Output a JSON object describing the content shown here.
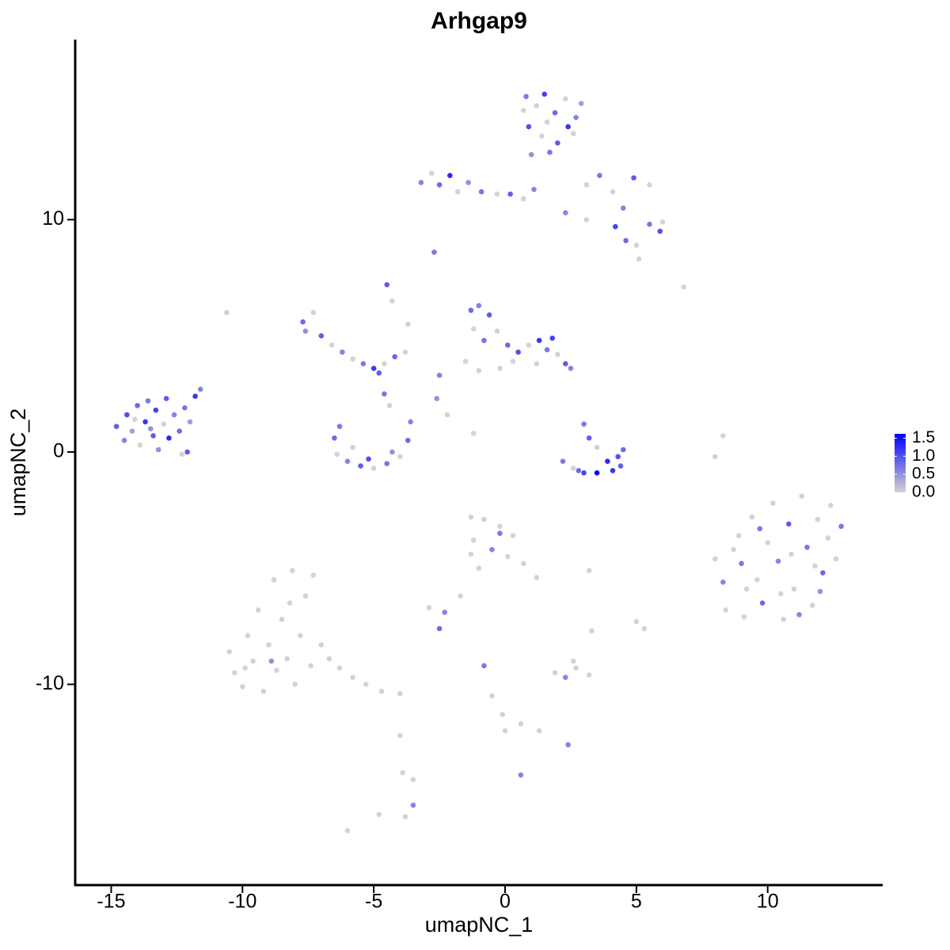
{
  "chart_data": {
    "type": "scatter",
    "title": "Arhgap9",
    "x_label": "umapNC_1",
    "y_label": "umapNC_2",
    "x": [
      -14.8,
      -14.5,
      -14.4,
      -14.2,
      -14.0,
      -13.9,
      -13.7,
      -13.6,
      -13.4,
      -13.3,
      -13.2,
      -13.0,
      -12.9,
      -12.8,
      -12.6,
      -12.4,
      -12.3,
      -12.2,
      -12.0,
      -12.1,
      -11.8,
      -11.6,
      -14.1,
      -13.5,
      0.8,
      1.2,
      1.5,
      1.9,
      2.3,
      2.7,
      0.9,
      1.4,
      2.0,
      2.6,
      1.0,
      1.7,
      0.7,
      2.9,
      2.4,
      1.6,
      -3.2,
      -2.8,
      -2.5,
      -2.1,
      -1.8,
      -1.4,
      -0.9,
      -0.3,
      0.2,
      0.7,
      1.1,
      3.1,
      3.6,
      4.1,
      4.5,
      4.9,
      5.5,
      4.2,
      4.6,
      5.0,
      5.5,
      5.9,
      6.0,
      2.3,
      3.1,
      -2.7,
      -7.7,
      -7.3,
      -7.0,
      -6.6,
      -6.2,
      -5.8,
      -5.4,
      -5.0,
      -4.6,
      -4.2,
      -3.8,
      -4.3,
      -4.5,
      -3.7,
      -7.6,
      -4.8,
      -4.6,
      -4.4,
      -6.5,
      -6.4,
      -6.0,
      -5.5,
      -5.0,
      -4.5,
      -4.0,
      -3.7,
      -3.6,
      -6.3,
      -5.8,
      -4.3,
      -5.2,
      -1.3,
      -1.0,
      -0.6,
      -1.2,
      -0.8,
      -0.3,
      0.1,
      0.5,
      0.9,
      1.3,
      1.6,
      2.0,
      2.3,
      2.5,
      1.8,
      0.3,
      -0.2,
      -1.5,
      -2.5,
      -2.6,
      -1.0,
      1.2,
      -2.2,
      -1.2,
      3.0,
      3.2,
      3.5,
      3.9,
      4.3,
      4.5,
      3.5,
      3.0,
      2.6,
      2.2,
      4.1,
      2.8,
      4.4,
      8.3,
      8.0,
      -10.6,
      8.0,
      8.3,
      8.4,
      8.9,
      9.0,
      9.1,
      9.4,
      9.6,
      9.8,
      10.0,
      10.2,
      10.4,
      10.6,
      10.8,
      11.0,
      11.3,
      11.5,
      11.7,
      11.9,
      12.1,
      12.3,
      12.6,
      12.8,
      12.4,
      11.2,
      9.2,
      10.5,
      11.8,
      9.7,
      10.9,
      12.0,
      8.7,
      -10.5,
      -10.3,
      -10.0,
      -9.8,
      -9.6,
      -9.4,
      -9.2,
      -9.0,
      -8.8,
      -8.7,
      -8.5,
      -8.3,
      -8.1,
      -8.0,
      -7.8,
      -7.6,
      -7.4,
      -7.3,
      -7.0,
      -6.7,
      -6.3,
      -5.8,
      -5.3,
      -4.7,
      -4.0,
      -8.9,
      -9.9,
      -8.2,
      -1.3,
      -0.8,
      -0.2,
      0.3,
      -1.2,
      -0.5,
      0.1,
      0.7,
      1.2,
      -0.2,
      -1.3,
      -2.9,
      -2.3,
      -2.5,
      -1.7,
      -1.0,
      -0.8,
      -0.5,
      -0.1,
      0.0,
      0.6,
      1.3,
      2.4,
      0.6,
      1.9,
      2.3,
      2.7,
      3.2,
      2.6,
      3.2,
      5.0,
      5.3,
      3.3,
      -3.5,
      -3.5,
      -3.8,
      -4.0,
      -4.8,
      -6.0,
      -3.9,
      5.1,
      6.8
    ],
    "values": [
      1.1,
      0.5,
      1.6,
      0.9,
      2.0,
      0.3,
      1.3,
      2.2,
      0.7,
      1.8,
      0.1,
      1.2,
      2.3,
      0.6,
      1.6,
      0.9,
      -0.1,
      1.9,
      1.3,
      0.0,
      2.4,
      2.7,
      1.4,
      1.0,
      15.3,
      14.9,
      15.4,
      14.6,
      15.2,
      14.4,
      14.0,
      13.6,
      13.3,
      13.7,
      12.8,
      12.9,
      14.7,
      15.0,
      14.0,
      14.2,
      11.6,
      12.0,
      11.5,
      11.9,
      11.2,
      11.6,
      11.2,
      11.1,
      11.1,
      10.9,
      11.3,
      11.5,
      11.9,
      11.2,
      10.5,
      11.8,
      11.5,
      9.7,
      9.1,
      8.9,
      9.8,
      9.5,
      9.9,
      10.3,
      10.0,
      8.6,
      5.6,
      6.0,
      5.0,
      4.6,
      4.3,
      4.0,
      3.8,
      3.6,
      3.8,
      4.1,
      4.3,
      6.5,
      7.2,
      5.5,
      5.2,
      3.4,
      2.5,
      2.0,
      0.6,
      -0.1,
      -0.4,
      -0.6,
      -0.7,
      -0.5,
      -0.2,
      0.5,
      1.3,
      1.1,
      0.2,
      0.0,
      -0.3,
      6.1,
      6.3,
      5.9,
      5.3,
      4.8,
      5.2,
      4.6,
      4.3,
      4.6,
      4.8,
      4.4,
      4.2,
      3.8,
      3.6,
      4.9,
      3.9,
      3.6,
      3.9,
      3.3,
      2.3,
      3.5,
      3.8,
      1.6,
      0.8,
      1.2,
      0.6,
      0.2,
      -0.4,
      -0.2,
      0.1,
      -0.9,
      -0.9,
      -0.7,
      -0.4,
      -0.8,
      -0.8,
      -0.6,
      0.7,
      -0.2,
      6.0,
      -4.6,
      -5.6,
      -6.8,
      -3.6,
      -4.8,
      -7.1,
      -2.8,
      -5.5,
      -6.5,
      -3.9,
      -2.2,
      -4.7,
      -7.2,
      -3.1,
      -5.9,
      -1.9,
      -4.1,
      -6.6,
      -2.9,
      -5.2,
      -3.7,
      -4.6,
      -3.2,
      -2.3,
      -7.0,
      -5.9,
      -6.1,
      -4.9,
      -3.3,
      -4.4,
      -6.0,
      -4.2,
      -8.6,
      -9.5,
      -10.1,
      -7.9,
      -9.0,
      -6.8,
      -10.3,
      -8.3,
      -5.5,
      -9.4,
      -7.2,
      -8.9,
      -5.1,
      -10.0,
      -7.9,
      -6.2,
      -9.2,
      -5.3,
      -8.3,
      -8.9,
      -9.3,
      -9.7,
      -10.0,
      -10.3,
      -10.4,
      -9.0,
      -9.3,
      -6.5,
      -2.8,
      -2.9,
      -3.2,
      -3.6,
      -3.8,
      -4.2,
      -4.5,
      -4.8,
      -5.4,
      -3.5,
      -4.4,
      -6.7,
      -6.9,
      -7.6,
      -6.2,
      -5.0,
      -9.2,
      -10.5,
      -11.3,
      -12.0,
      -11.7,
      -12.0,
      -12.6,
      -13.9,
      -9.5,
      -9.7,
      -9.3,
      -9.6,
      -9.0,
      -5.1,
      -7.3,
      -7.6,
      -7.7,
      -14.1,
      -15.2,
      -15.7,
      -12.2,
      -15.6,
      -16.3,
      -13.8,
      8.3,
      7.1
    ],
    "expression": [
      0.9,
      0.6,
      1.0,
      0.4,
      0.8,
      0,
      1.2,
      0.7,
      0.9,
      1.1,
      0.5,
      0,
      0.9,
      1.3,
      0.6,
      0.8,
      0,
      0.7,
      0.4,
      0.9,
      1.2,
      0.6,
      0,
      0.5,
      0.7,
      0,
      1.1,
      0.8,
      0,
      0.6,
      1.0,
      0,
      0.9,
      0,
      0.5,
      0.7,
      0,
      0.4,
      1.2,
      0,
      0.6,
      0,
      0.8,
      1.3,
      0,
      0.5,
      0.7,
      0,
      0.9,
      0,
      0.6,
      0,
      0.7,
      0,
      0.6,
      0.9,
      0,
      1.1,
      0.8,
      0,
      0.7,
      1.0,
      0,
      0.6,
      0,
      0.7,
      0.8,
      0,
      0.9,
      0,
      0.6,
      0,
      0.7,
      1.2,
      0,
      0.8,
      0,
      0,
      0.9,
      0,
      0.5,
      0.9,
      0.7,
      0,
      0.8,
      0,
      0.6,
      0.9,
      0,
      0.7,
      0,
      0.8,
      0.6,
      0.7,
      0,
      0.5,
      1.0,
      0.8,
      0.6,
      0.9,
      0,
      0.7,
      0,
      0.8,
      1.0,
      0,
      1.2,
      0.7,
      0,
      0.9,
      0.6,
      1.1,
      0,
      0,
      0,
      0.6,
      0.5,
      0,
      0,
      0,
      0,
      0.7,
      0.9,
      0,
      1.3,
      1.0,
      0.8,
      1.6,
      1.1,
      0,
      0.7,
      1.2,
      0.8,
      0.9,
      0,
      0,
      0,
      0,
      0.6,
      0,
      0,
      0.7,
      0,
      0,
      0,
      0.8,
      0,
      0,
      0.6,
      0,
      0.9,
      0,
      0,
      0.7,
      0,
      0,
      0.8,
      0,
      0,
      0.7,
      0,
      0.6,
      0,
      0,
      0,
      0.7,
      0,
      0.5,
      0,
      0,
      0,
      0,
      0,
      0,
      0,
      0,
      0,
      0,
      0,
      0,
      0,
      0,
      0,
      0,
      0,
      0,
      0,
      0,
      0,
      0,
      0,
      0,
      0,
      0,
      0.5,
      0,
      0,
      0,
      0,
      0,
      0,
      0,
      0.6,
      0,
      0,
      0,
      0.7,
      0,
      0,
      0.6,
      0.8,
      0,
      0,
      0.7,
      0,
      0,
      0,
      0,
      0,
      0.6,
      0.6,
      0,
      0.6,
      0,
      0,
      0,
      0,
      0,
      0,
      0,
      0,
      0.6,
      0,
      0,
      0,
      0,
      0,
      0,
      0
    ],
    "colors": [
      "#d3d3d3",
      "#0000ff"
    ],
    "xlim": [
      -16.37,
      14.38
    ],
    "ylim": [
      -18.64,
      17.75
    ],
    "xticks": [
      -15,
      -10,
      -5,
      0,
      5,
      10
    ],
    "yticks": [
      -10,
      0,
      10
    ],
    "colorbar_lim": [
      0,
      1.62
    ],
    "colorbar_ticks": [
      {
        "value": 0,
        "label": "0.0"
      },
      {
        "value": 0.5,
        "label": "0.5"
      },
      {
        "value": 1,
        "label": "1.0"
      },
      {
        "value": 1.5,
        "label": "1.5"
      }
    ]
  }
}
